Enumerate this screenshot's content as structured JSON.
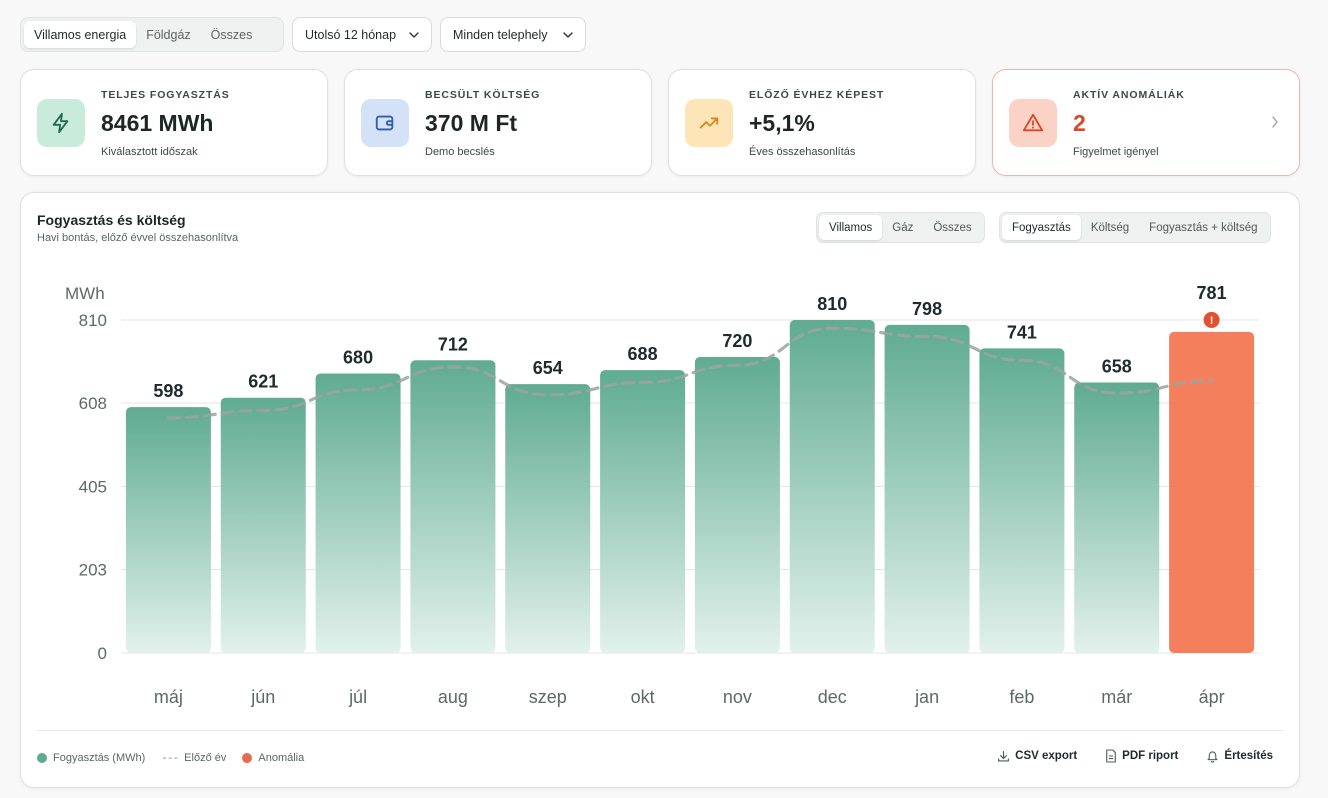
{
  "filters": {
    "energy_tabs": [
      "Villamos energia",
      "Földgáz",
      "Összes"
    ],
    "energy_active": 0,
    "period": "Utolsó 12 hónap",
    "site": "Minden telephely"
  },
  "kpis": [
    {
      "label": "TELJES FOGYASZTÁS",
      "value": "8461 MWh",
      "sub": "Kiválasztott időszak",
      "icon": "lightning-icon",
      "bg": "#c9ebdc",
      "color": "#1f6b50"
    },
    {
      "label": "BECSÜLT KÖLTSÉG",
      "value": "370 M Ft",
      "sub": "Demo becslés",
      "icon": "wallet-icon",
      "bg": "#d3e2f7",
      "color": "#2e5fa8"
    },
    {
      "label": "ELŐZŐ ÉVHEZ KÉPEST",
      "value": "+5,1%",
      "sub": "Éves összehasonlítás",
      "icon": "trend-up-icon",
      "bg": "#fde5b8",
      "color": "#d88a1a"
    },
    {
      "label": "AKTÍV ANOMÁLIÁK",
      "value": "2",
      "sub": "Figyelmet igényel",
      "icon": "warning-icon",
      "bg": "#fbd2c6",
      "color": "#d9472b",
      "value_color": "#d9472b"
    }
  ],
  "panel": {
    "title": "Fogyasztás és költség",
    "subtitle": "Havi bontás, előző évvel összehasonlítva",
    "type_tabs": [
      "Villamos",
      "Gáz",
      "Összes"
    ],
    "type_active": 0,
    "metric_tabs": [
      "Fogyasztás",
      "Költség",
      "Fogyasztás + költség"
    ],
    "metric_active": 0
  },
  "chart_data": {
    "type": "bar",
    "ylabel": "MWh",
    "ylim": [
      0,
      810
    ],
    "yticks": [
      0,
      203,
      405,
      608,
      810
    ],
    "categories": [
      "máj",
      "jún",
      "júl",
      "aug",
      "szep",
      "okt",
      "nov",
      "dec",
      "jan",
      "feb",
      "már",
      "ápr"
    ],
    "series": [
      {
        "name": "Fogyasztás (MWh)",
        "values": [
          598,
          621,
          680,
          712,
          654,
          688,
          720,
          810,
          798,
          741,
          658,
          781
        ],
        "color": "#5fab91"
      },
      {
        "name": "Előző év",
        "values": [
          572,
          590,
          640,
          696,
          628,
          658,
          700,
          790,
          770,
          712,
          632,
          662
        ],
        "color": "#9aa3a0",
        "style": "dashed"
      }
    ],
    "anomaly_index": [
      11
    ],
    "anomaly_color": "#f47f5d"
  },
  "legend": [
    {
      "label": "Fogyasztás (MWh)",
      "type": "dot",
      "color": "#5fab91"
    },
    {
      "label": "Előző év",
      "type": "dash",
      "glyph": "---",
      "color": "#9aa3a0"
    },
    {
      "label": "Anomália",
      "type": "dot",
      "color": "#e86a4c"
    }
  ],
  "actions": [
    {
      "label": "CSV export",
      "icon": "download-icon"
    },
    {
      "label": "PDF riport",
      "icon": "document-icon"
    },
    {
      "label": "Értesítés",
      "icon": "bell-icon"
    }
  ]
}
